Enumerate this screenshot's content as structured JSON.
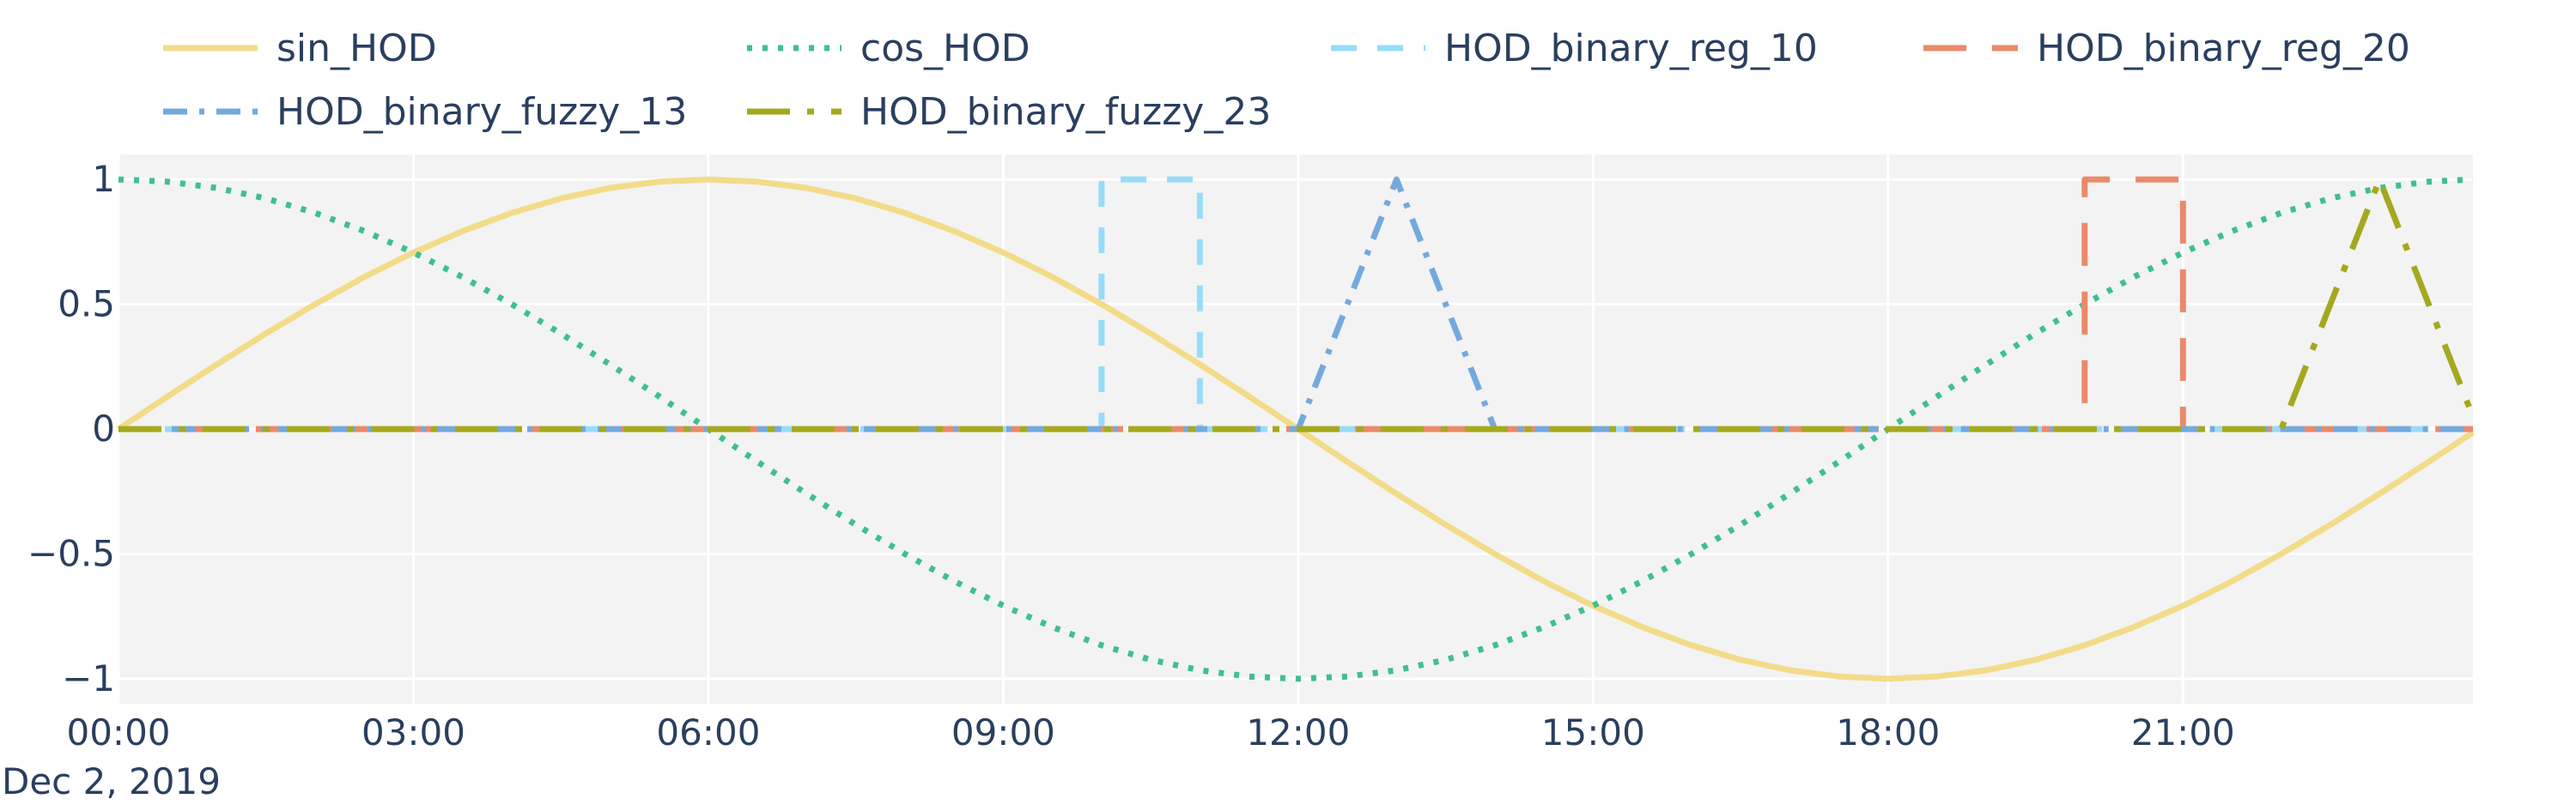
{
  "chart_data": {
    "type": "line",
    "x_axis": {
      "type": "date",
      "date_label": "Dec 2, 2019",
      "start": "2019-12-02T00:00",
      "end": "2019-12-02T23:55",
      "tick_labels": [
        "00:00",
        "03:00",
        "06:00",
        "09:00",
        "12:00",
        "15:00",
        "18:00",
        "21:00"
      ],
      "tick_hours": [
        0,
        3,
        6,
        9,
        12,
        15,
        18,
        21
      ],
      "range_hours": [
        0,
        23.95
      ]
    },
    "y_axis": {
      "range": [
        -1.1,
        1.1
      ],
      "tick_values": [
        1,
        0.5,
        0,
        -0.5,
        -1
      ],
      "tick_labels": [
        "1",
        "0.5",
        "0",
        "−0.5",
        "−1"
      ]
    },
    "grid": true,
    "legend_position": "top",
    "background": "#f3f3f3",
    "series": [
      {
        "name": "sin_HOD",
        "color": "#f2dc8a",
        "dash": "solid",
        "x_hours": [
          0,
          0.5,
          1,
          1.5,
          2,
          2.5,
          3,
          3.5,
          4,
          4.5,
          5,
          5.5,
          6,
          6.5,
          7,
          7.5,
          8,
          8.5,
          9,
          9.5,
          10,
          10.5,
          11,
          11.5,
          12,
          12.5,
          13,
          13.5,
          14,
          14.5,
          15,
          15.5,
          16,
          16.5,
          17,
          17.5,
          18,
          18.5,
          19,
          19.5,
          20,
          20.5,
          21,
          21.5,
          22,
          22.5,
          23,
          23.5,
          23.95
        ],
        "y": [
          0,
          0.131,
          0.259,
          0.383,
          0.5,
          0.609,
          0.707,
          0.793,
          0.866,
          0.924,
          0.966,
          0.991,
          1,
          0.991,
          0.966,
          0.924,
          0.866,
          0.793,
          0.707,
          0.609,
          0.5,
          0.383,
          0.259,
          0.131,
          0,
          -0.131,
          -0.259,
          -0.383,
          -0.5,
          -0.609,
          -0.707,
          -0.793,
          -0.866,
          -0.924,
          -0.966,
          -0.991,
          -1,
          -0.991,
          -0.966,
          -0.924,
          -0.866,
          -0.793,
          -0.707,
          -0.609,
          -0.5,
          -0.383,
          -0.259,
          -0.131,
          -0.013
        ]
      },
      {
        "name": "cos_HOD",
        "color": "#3fbf8f",
        "dash": "dot",
        "x_hours": [
          0,
          0.5,
          1,
          1.5,
          2,
          2.5,
          3,
          3.5,
          4,
          4.5,
          5,
          5.5,
          6,
          6.5,
          7,
          7.5,
          8,
          8.5,
          9,
          9.5,
          10,
          10.5,
          11,
          11.5,
          12,
          12.5,
          13,
          13.5,
          14,
          14.5,
          15,
          15.5,
          16,
          16.5,
          17,
          17.5,
          18,
          18.5,
          19,
          19.5,
          20,
          20.5,
          21,
          21.5,
          22,
          22.5,
          23,
          23.5,
          23.95
        ],
        "y": [
          1,
          0.991,
          0.966,
          0.924,
          0.866,
          0.793,
          0.707,
          0.609,
          0.5,
          0.383,
          0.259,
          0.131,
          0,
          -0.131,
          -0.259,
          -0.383,
          -0.5,
          -0.609,
          -0.707,
          -0.793,
          -0.866,
          -0.924,
          -0.966,
          -0.991,
          -1,
          -0.991,
          -0.966,
          -0.924,
          -0.866,
          -0.793,
          -0.707,
          -0.609,
          -0.5,
          -0.383,
          -0.259,
          -0.131,
          0,
          0.131,
          0.259,
          0.383,
          0.5,
          0.609,
          0.707,
          0.793,
          0.866,
          0.924,
          0.966,
          0.991,
          1
        ]
      },
      {
        "name": "HOD_binary_reg_10",
        "color": "#98dcf8",
        "dash": "dash",
        "x_hours": [
          0,
          10,
          10,
          11,
          11,
          23.95
        ],
        "y": [
          0,
          0,
          1,
          1,
          0,
          0
        ]
      },
      {
        "name": "HOD_binary_reg_20",
        "color": "#ea8a6a",
        "dash": "longdash",
        "x_hours": [
          0,
          20,
          20,
          21,
          21,
          23.95
        ],
        "y": [
          0,
          0,
          1,
          1,
          0,
          0
        ]
      },
      {
        "name": "HOD_binary_fuzzy_13",
        "color": "#74a9dd",
        "dash": "dashdot",
        "x_hours": [
          0,
          12,
          13,
          14,
          23.95
        ],
        "y": [
          0,
          0,
          1,
          0,
          0
        ]
      },
      {
        "name": "HOD_binary_fuzzy_23",
        "color": "#a5a81e",
        "dash": "longdashdot",
        "x_hours": [
          0,
          22,
          23,
          23.95
        ],
        "y": [
          0,
          0,
          1,
          0.05
        ]
      }
    ]
  }
}
